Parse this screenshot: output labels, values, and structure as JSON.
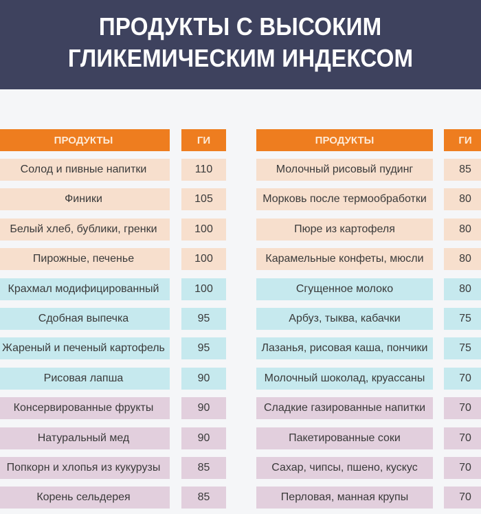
{
  "title": {
    "line1": "ПРОДУКТЫ С ВЫСОКИМ",
    "line2": "ГЛИКЕМИЧЕСКИМ ИНДЕКСОМ"
  },
  "colors": {
    "banner": "#3e425e",
    "header": "#ee7d1f",
    "group_peach": "#f7dfcd",
    "group_blue": "#c6e9ee",
    "group_lilac": "#e2cfdd",
    "background": "#f5f6f8"
  },
  "tables": [
    {
      "headers": {
        "product": "ПРОДУКТЫ",
        "gi": "ГИ"
      },
      "rows": [
        {
          "product": "Солод и пивные напитки",
          "gi": "110",
          "group": "peach"
        },
        {
          "product": "Финики",
          "gi": "105",
          "group": "peach"
        },
        {
          "product": "Белый хлеб, бублики, гренки",
          "gi": "100",
          "group": "peach"
        },
        {
          "product": "Пирожные, печенье",
          "gi": "100",
          "group": "peach"
        },
        {
          "product": "Крахмал модифицированный",
          "gi": "100",
          "group": "blue"
        },
        {
          "product": "Сдобная выпечка",
          "gi": "95",
          "group": "blue"
        },
        {
          "product": "Жареный и печеный картофель",
          "gi": "95",
          "group": "blue"
        },
        {
          "product": "Рисовая лапша",
          "gi": "90",
          "group": "blue"
        },
        {
          "product": "Консервированные фрукты",
          "gi": "90",
          "group": "lilac"
        },
        {
          "product": "Натуральный мед",
          "gi": "90",
          "group": "lilac"
        },
        {
          "product": "Попкорн и хлопья из кукурузы",
          "gi": "85",
          "group": "lilac"
        },
        {
          "product": "Корень сельдерея",
          "gi": "85",
          "group": "lilac"
        }
      ]
    },
    {
      "headers": {
        "product": "ПРОДУКТЫ",
        "gi": "ГИ"
      },
      "rows": [
        {
          "product": "Молочный рисовый пудинг",
          "gi": "85",
          "group": "peach"
        },
        {
          "product": "Морковь после термообработки",
          "gi": "80",
          "group": "peach"
        },
        {
          "product": "Пюре из картофеля",
          "gi": "80",
          "group": "peach"
        },
        {
          "product": "Карамельные конфеты, мюсли",
          "gi": "80",
          "group": "peach"
        },
        {
          "product": "Сгущенное молоко",
          "gi": "80",
          "group": "blue"
        },
        {
          "product": "Арбуз, тыква, кабачки",
          "gi": "75",
          "group": "blue"
        },
        {
          "product": "Лазанья, рисовая каша, пончики",
          "gi": "75",
          "group": "blue"
        },
        {
          "product": "Молочный шоколад, круассаны",
          "gi": "70",
          "group": "blue"
        },
        {
          "product": "Сладкие газированные напитки",
          "gi": "70",
          "group": "lilac"
        },
        {
          "product": "Пакетированные соки",
          "gi": "70",
          "group": "lilac"
        },
        {
          "product": "Сахар, чипсы, пшено, кускус",
          "gi": "70",
          "group": "lilac"
        },
        {
          "product": "Перловая, манная крупы",
          "gi": "70",
          "group": "lilac"
        }
      ]
    }
  ]
}
